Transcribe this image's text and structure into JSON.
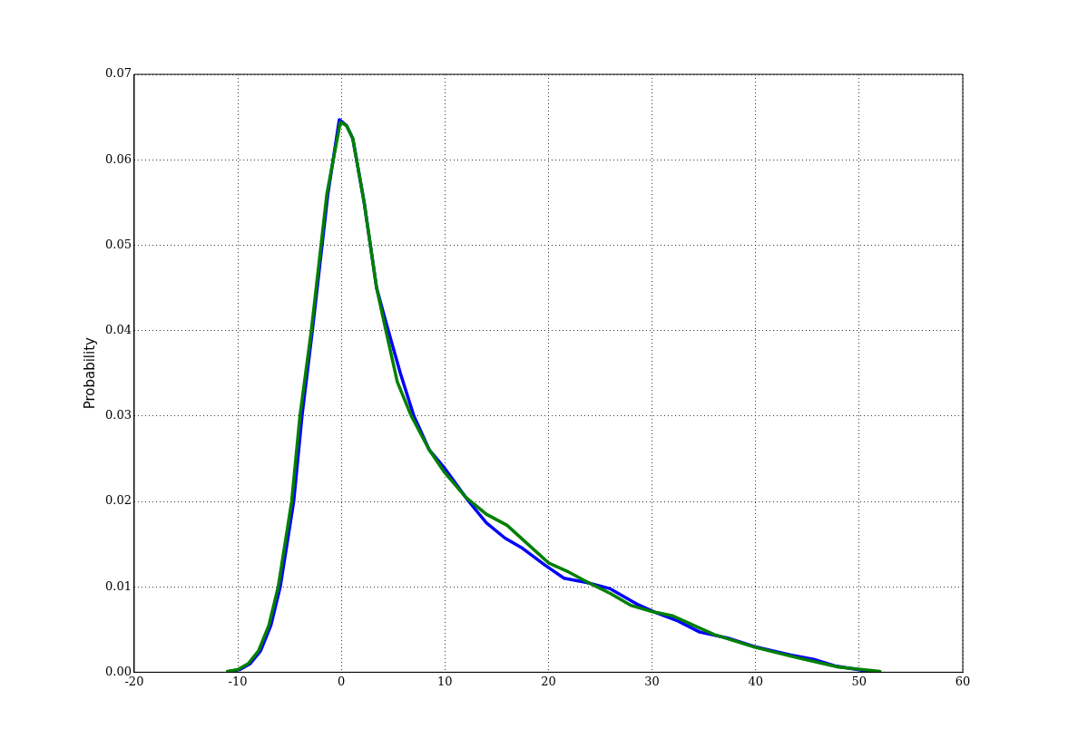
{
  "chart_data": {
    "type": "line",
    "ylabel": "Probability",
    "series": [
      {
        "color": "#0000ff",
        "x": [
          -10.8,
          -9.8,
          -8.8,
          -7.8,
          -6.8,
          -5.9,
          -4.6,
          -3.8,
          -2.8,
          -1.3,
          -0.2,
          0.5,
          1.1,
          2.2,
          3.4,
          4.3,
          5.7,
          7.0,
          8.5,
          9.9,
          12.3,
          14,
          15.8,
          17.5,
          19.7,
          21.5,
          23.7,
          25.9,
          28.5,
          30.3,
          32.5,
          34.6,
          37.3,
          39.9,
          43.4,
          45.6,
          47.8,
          50.4,
          51.8
        ],
        "values": [
          0.0001,
          0.0003,
          0.001,
          0.0025,
          0.0055,
          0.01,
          0.02,
          0.03,
          0.04,
          0.056,
          0.0647,
          0.064,
          0.0625,
          0.055,
          0.045,
          0.041,
          0.035,
          0.03,
          0.026,
          0.024,
          0.02,
          0.0175,
          0.0157,
          0.0145,
          0.0125,
          0.011,
          0.0105,
          0.0098,
          0.008,
          0.007,
          0.006,
          0.0047,
          0.004,
          0.003,
          0.002,
          0.0015,
          0.0007,
          0.0002,
          0.0
        ]
      },
      {
        "color": "#008000",
        "x": [
          -11,
          -10,
          -9,
          -8,
          -7,
          -6.1,
          -4.8,
          -4,
          -2.9,
          -1.4,
          -0.1,
          0.5,
          1.1,
          2.2,
          3.4,
          4.3,
          5.4,
          6.75,
          8.5,
          9.9,
          12,
          14,
          16,
          18,
          20,
          22,
          24,
          26,
          28,
          30,
          32,
          34,
          36,
          40,
          44,
          48,
          52
        ],
        "values": [
          0.0001,
          0.0003,
          0.001,
          0.0025,
          0.0055,
          0.01,
          0.02,
          0.03,
          0.04,
          0.056,
          0.0644,
          0.064,
          0.0625,
          0.055,
          0.045,
          0.04,
          0.034,
          0.03,
          0.026,
          0.0235,
          0.0205,
          0.0185,
          0.0172,
          0.015,
          0.0128,
          0.0117,
          0.0104,
          0.0092,
          0.0078,
          0.0071,
          0.0066,
          0.0055,
          0.0044,
          0.0029,
          0.0017,
          0.0006,
          0.0001
        ]
      }
    ],
    "xlim": [
      -20,
      60
    ],
    "xticks": [
      -20,
      -10,
      0,
      10,
      20,
      30,
      40,
      50,
      60
    ],
    "ylim": [
      0,
      0.07
    ],
    "yticks": [
      {
        "value": 0,
        "label": "0.00"
      },
      {
        "value": 0.01,
        "label": "0.01"
      },
      {
        "value": 0.02,
        "label": "0.02"
      },
      {
        "value": 0.03,
        "label": "0.03"
      },
      {
        "value": 0.04,
        "label": "0.04"
      },
      {
        "value": 0.05,
        "label": "0.05"
      },
      {
        "value": 0.06,
        "label": "0.06"
      },
      {
        "value": 0.07,
        "label": "0.07"
      }
    ],
    "grid": true,
    "legend": false,
    "marker": "none",
    "line_style": "solid"
  }
}
